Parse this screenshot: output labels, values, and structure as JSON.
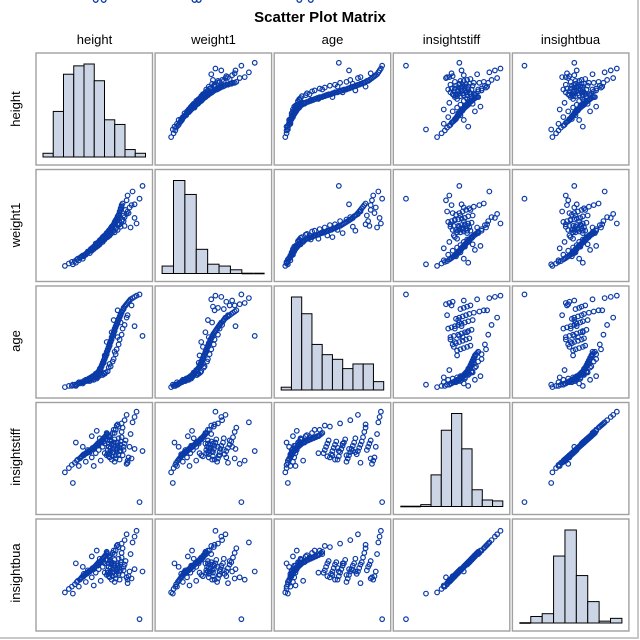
{
  "chart_data": {
    "type": "scatter",
    "title": "Scatter Plot Matrix",
    "variables": [
      "height",
      "weight1",
      "age",
      "insightstiff",
      "insightbua"
    ],
    "diagonal": "histogram",
    "grid": false,
    "legend": "none",
    "ranges": {
      "height": [
        95,
        200
      ],
      "weight1": [
        10,
        135
      ],
      "age": [
        3,
        85
      ],
      "insightstiff": [
        -2.2,
        7.2
      ],
      "insightbua": [
        -1.8,
        6.8
      ]
    },
    "histogram_relative_heights": {
      "height": [
        4,
        49,
        89,
        98,
        100,
        82,
        40,
        35,
        8,
        4
      ],
      "weight1": [
        8,
        100,
        85,
        26,
        10,
        8,
        4,
        1,
        1
      ],
      "age": [
        3,
        100,
        82,
        49,
        38,
        33,
        23,
        28,
        28,
        9
      ],
      "insightstiff": [
        1,
        0,
        2,
        34,
        82,
        100,
        62,
        18,
        7,
        6
      ],
      "insightbua": [
        1,
        7,
        10,
        72,
        100,
        51,
        23,
        2,
        5
      ]
    },
    "observations": {
      "height": [
        118,
        122,
        125,
        128,
        130,
        131,
        133,
        134,
        135,
        136,
        137,
        138,
        139,
        140,
        141,
        141,
        142,
        143,
        144,
        144,
        145,
        146,
        146,
        147,
        148,
        148,
        149,
        150,
        150,
        151,
        151,
        152,
        152,
        153,
        153,
        154,
        154,
        155,
        155,
        156,
        156,
        157,
        157,
        158,
        158,
        159,
        159,
        160,
        160,
        160,
        161,
        161,
        162,
        162,
        163,
        163,
        163,
        164,
        164,
        165,
        165,
        165,
        166,
        166,
        167,
        167,
        168,
        168,
        168,
        169,
        169,
        170,
        170,
        171,
        171,
        172,
        172,
        173,
        173,
        174,
        174,
        175,
        175,
        176,
        177,
        177,
        178,
        179,
        180,
        181,
        182,
        183,
        184,
        186,
        188,
        190,
        193,
        126,
        132,
        139,
        145,
        149,
        152,
        156,
        158,
        161,
        164,
        167,
        170,
        173,
        176,
        143,
        147,
        151,
        155,
        159,
        162,
        166,
        169,
        172,
        175,
        178,
        181,
        185,
        137,
        141,
        150,
        157,
        163,
        168,
        171,
        174,
        160,
        154,
        147,
        136,
        129,
        158,
        165,
        153,
        162,
        167,
        145,
        150,
        171,
        180,
        188,
        196,
        157,
        149
      ],
      "weight1": [
        22,
        25,
        27,
        28,
        30,
        31,
        32,
        33,
        34,
        35,
        35,
        36,
        37,
        38,
        39,
        40,
        40,
        41,
        42,
        43,
        44,
        44,
        45,
        46,
        47,
        47,
        48,
        49,
        50,
        50,
        51,
        52,
        52,
        53,
        54,
        54,
        55,
        56,
        56,
        57,
        58,
        58,
        59,
        60,
        60,
        61,
        61,
        62,
        63,
        63,
        64,
        64,
        65,
        66,
        66,
        67,
        67,
        68,
        69,
        69,
        70,
        71,
        72,
        72,
        73,
        74,
        75,
        76,
        77,
        78,
        79,
        80,
        81,
        82,
        84,
        85,
        86,
        88,
        90,
        92,
        94,
        96,
        98,
        100,
        85,
        78,
        72,
        92,
        104,
        110,
        88,
        95,
        70,
        115,
        82,
        75,
        106,
        24,
        29,
        36,
        41,
        45,
        48,
        52,
        55,
        58,
        62,
        66,
        70,
        74,
        80,
        38,
        43,
        47,
        53,
        57,
        61,
        65,
        68,
        73,
        78,
        83,
        90,
        98,
        34,
        39,
        46,
        54,
        60,
        64,
        67,
        71,
        58,
        52,
        44,
        31,
        26,
        56,
        63,
        49,
        60,
        66,
        42,
        47,
        74,
        87,
        99,
        122,
        55,
        50
      ],
      "age": [
        7,
        8,
        8,
        9,
        9,
        10,
        10,
        11,
        11,
        11,
        12,
        12,
        12,
        13,
        13,
        13,
        14,
        14,
        14,
        15,
        15,
        15,
        16,
        16,
        16,
        17,
        17,
        18,
        18,
        19,
        19,
        20,
        20,
        21,
        22,
        22,
        23,
        24,
        25,
        26,
        27,
        28,
        29,
        30,
        31,
        32,
        33,
        34,
        35,
        36,
        37,
        38,
        39,
        40,
        41,
        42,
        43,
        44,
        45,
        46,
        47,
        48,
        49,
        50,
        51,
        52,
        53,
        54,
        55,
        56,
        57,
        58,
        59,
        60,
        61,
        62,
        63,
        64,
        65,
        66,
        67,
        68,
        69,
        70,
        71,
        72,
        73,
        74,
        75,
        76,
        77,
        78,
        79,
        80,
        81,
        82,
        83,
        9,
        11,
        13,
        14,
        15,
        16,
        17,
        18,
        20,
        24,
        30,
        38,
        46,
        55,
        12,
        13,
        15,
        17,
        19,
        23,
        28,
        34,
        42,
        50,
        58,
        66,
        74,
        11,
        12,
        14,
        18,
        26,
        36,
        48,
        60,
        44,
        21,
        15,
        10,
        8,
        33,
        52,
        19,
        40,
        62,
        13,
        16,
        70,
        64,
        57,
        49,
        27,
        18
      ],
      "insightstiff": [
        1.2,
        1.6,
        1.9,
        2.1,
        2.3,
        2.4,
        2.5,
        2.6,
        2.7,
        2.8,
        2.8,
        2.9,
        3.0,
        3.0,
        3.1,
        3.1,
        3.2,
        3.2,
        3.3,
        3.3,
        3.4,
        3.4,
        3.5,
        3.5,
        3.6,
        3.6,
        3.7,
        3.7,
        3.8,
        3.8,
        3.9,
        3.9,
        4.0,
        4.0,
        4.0,
        4.1,
        4.1,
        4.2,
        4.2,
        4.3,
        4.3,
        4.4,
        4.4,
        4.5,
        4.5,
        4.6,
        4.6,
        4.7,
        4.8,
        4.9,
        3.0,
        3.3,
        3.6,
        3.9,
        4.2,
        2.6,
        2.9,
        3.2,
        3.5,
        3.8,
        4.1,
        2.4,
        2.7,
        3.1,
        3.4,
        3.7,
        4.0,
        4.3,
        2.2,
        2.5,
        2.8,
        3.1,
        3.4,
        3.7,
        4.0,
        4.4,
        2.9,
        3.2,
        3.5,
        3.8,
        4.1,
        4.5,
        5.0,
        5.4,
        3.3,
        3.6,
        3.9,
        4.2,
        2.0,
        2.3,
        2.6,
        3.6,
        4.8,
        5.9,
        6.4,
        6.9,
        -1.6,
        0.2,
        1.8,
        2.2,
        2.6,
        3.0,
        3.3,
        3.6,
        3.9,
        4.3,
        4.7,
        5.2,
        5.6,
        2.4,
        2.8,
        3.1,
        3.4,
        3.7,
        4.0,
        4.3,
        4.6,
        4.9,
        5.2,
        5.5,
        5.8,
        6.1,
        2.1,
        2.5,
        2.9,
        3.3,
        3.7,
        4.1,
        4.5,
        4.9,
        3.5,
        3.2,
        2.8,
        2.3,
        1.8,
        3.6,
        4.0,
        3.0,
        3.9,
        4.4,
        2.7,
        3.1,
        4.6,
        5.1,
        5.7,
        6.6,
        3.4,
        3.2
      ],
      "insightbua": [
        1.0,
        1.3,
        1.5,
        1.7,
        1.9,
        2.0,
        2.1,
        2.2,
        2.3,
        2.4,
        2.4,
        2.5,
        2.6,
        2.6,
        2.7,
        2.7,
        2.8,
        2.8,
        2.9,
        2.9,
        3.0,
        3.0,
        3.1,
        3.1,
        3.2,
        3.2,
        3.3,
        3.3,
        3.4,
        3.4,
        3.5,
        3.5,
        3.6,
        3.6,
        3.6,
        3.7,
        3.7,
        3.8,
        3.8,
        3.9,
        3.9,
        4.0,
        4.0,
        4.1,
        4.1,
        4.2,
        4.2,
        4.3,
        4.4,
        4.5,
        2.7,
        2.9,
        3.2,
        3.5,
        3.7,
        2.3,
        2.6,
        2.8,
        3.1,
        3.4,
        3.6,
        2.1,
        2.4,
        2.7,
        3.0,
        3.3,
        3.5,
        3.8,
        1.9,
        2.2,
        2.5,
        2.8,
        3.0,
        3.3,
        3.5,
        3.9,
        2.6,
        2.8,
        3.1,
        3.4,
        3.6,
        4.0,
        4.4,
        4.8,
        2.9,
        3.2,
        3.4,
        3.7,
        2.3,
        2.1,
        2.4,
        2.8,
        4.3,
        5.3,
        5.8,
        6.3,
        -1.3,
        0.9,
        1.5,
        1.9,
        2.3,
        2.7,
        3.0,
        3.2,
        3.5,
        3.8,
        4.2,
        4.6,
        5.0,
        2.1,
        2.5,
        2.8,
        3.0,
        3.3,
        3.6,
        3.8,
        4.1,
        4.4,
        4.6,
        4.9,
        5.2,
        5.5,
        1.8,
        2.2,
        2.6,
        2.9,
        3.3,
        3.6,
        4.0,
        4.3,
        3.1,
        2.9,
        2.5,
        2.0,
        1.6,
        3.2,
        3.5,
        2.7,
        3.5,
        3.9,
        2.4,
        2.8,
        4.1,
        4.6,
        5.1,
        6.0,
        3.0,
        2.8
      ]
    }
  }
}
